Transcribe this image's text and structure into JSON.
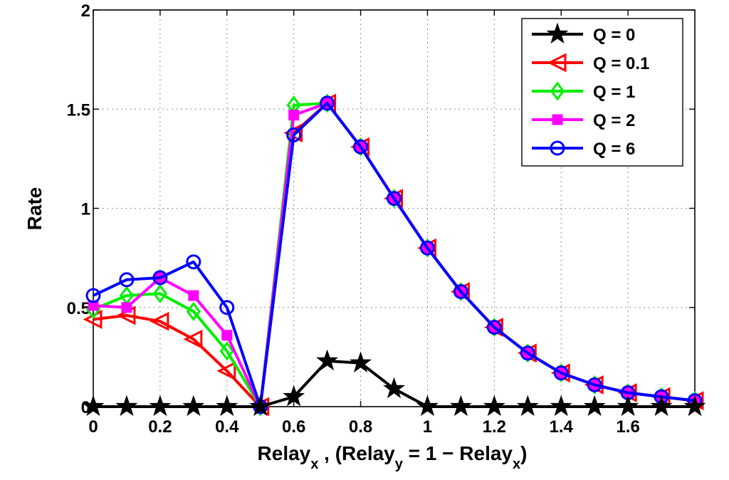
{
  "chart_data": {
    "type": "line",
    "title": "",
    "ylabel": "Rate",
    "xlabel_parts": {
      "main": "Relay",
      "sub1": "x",
      "mid": " , (Relay",
      "sub2": "y",
      "eq": " = 1 − Relay",
      "sub3": "x",
      "close": ")"
    },
    "xlim": [
      0,
      1.8
    ],
    "ylim": [
      0,
      2
    ],
    "x_ticks": [
      {
        "value": 0,
        "label": "0"
      },
      {
        "value": 0.2,
        "label": "0.2"
      },
      {
        "value": 0.4,
        "label": "0.4"
      },
      {
        "value": 0.6,
        "label": "0.6"
      },
      {
        "value": 0.8,
        "label": "0.8"
      },
      {
        "value": 1.0,
        "label": "1"
      },
      {
        "value": 1.2,
        "label": "1.2"
      },
      {
        "value": 1.4,
        "label": "1.4"
      },
      {
        "value": 1.6,
        "label": "1.6"
      }
    ],
    "y_ticks": [
      {
        "value": 0,
        "label": "0"
      },
      {
        "value": 0.5,
        "label": "0.5"
      },
      {
        "value": 1.0,
        "label": "1"
      },
      {
        "value": 1.5,
        "label": "1.5"
      },
      {
        "value": 2.0,
        "label": "2"
      }
    ],
    "grid": true,
    "legend_position": "top-right",
    "x": [
      0,
      0.1,
      0.2,
      0.3,
      0.4,
      0.5,
      0.6,
      0.7,
      0.8,
      0.9,
      1.0,
      1.1,
      1.2,
      1.3,
      1.4,
      1.5,
      1.6,
      1.7,
      1.8
    ],
    "series": [
      {
        "name": "Q = 0",
        "color": "#000000",
        "marker": "star",
        "values": [
          0,
          0,
          0,
          0,
          0,
          0,
          0.05,
          0.23,
          0.22,
          0.09,
          0,
          0,
          0,
          0,
          0,
          0,
          0,
          0,
          0
        ]
      },
      {
        "name": "Q = 0.1",
        "color": "#ff0000",
        "marker": "triangle-left",
        "values": [
          0.44,
          0.46,
          0.43,
          0.34,
          0.18,
          0,
          1.38,
          1.53,
          1.31,
          1.05,
          0.8,
          0.58,
          0.4,
          0.27,
          0.17,
          0.11,
          0.07,
          0.05,
          0.03
        ]
      },
      {
        "name": "Q = 1",
        "color": "#00ee00",
        "marker": "diamond",
        "values": [
          0.49,
          0.56,
          0.57,
          0.48,
          0.28,
          0,
          1.52,
          1.53,
          1.31,
          1.05,
          0.8,
          0.58,
          0.4,
          0.27,
          0.17,
          0.11,
          0.07,
          0.05,
          0.03
        ]
      },
      {
        "name": "Q = 2",
        "color": "#ff00ff",
        "marker": "square",
        "values": [
          0.51,
          0.5,
          0.65,
          0.56,
          0.36,
          0,
          1.47,
          1.53,
          1.31,
          1.05,
          0.8,
          0.58,
          0.4,
          0.27,
          0.17,
          0.11,
          0.07,
          0.05,
          0.03
        ]
      },
      {
        "name": "Q = 6",
        "color": "#0000ff",
        "marker": "circle",
        "values": [
          0.56,
          0.64,
          0.65,
          0.73,
          0.5,
          0,
          1.37,
          1.53,
          1.31,
          1.05,
          0.8,
          0.58,
          0.4,
          0.27,
          0.17,
          0.11,
          0.07,
          0.05,
          0.03
        ]
      }
    ]
  }
}
